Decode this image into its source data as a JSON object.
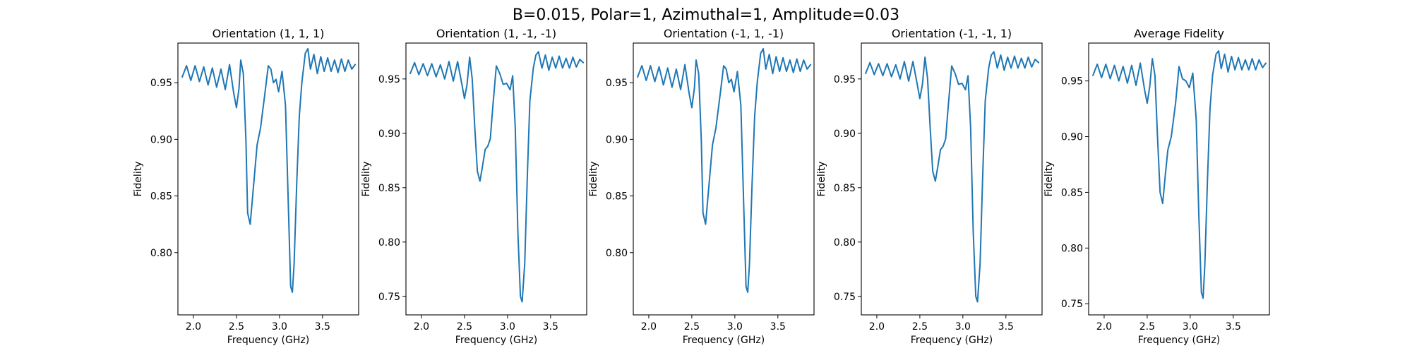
{
  "figure": {
    "suptitle": "B=0.015, Polar=1, Azimuthal=1, Amplitude=0.03"
  },
  "chart_data": [
    {
      "type": "line",
      "title": "Orientation (1, 1, 1)",
      "xlabel": "Frequency (GHz)",
      "ylabel": "Fidelity",
      "xlim": [
        1.82,
        3.92
      ],
      "ylim": [
        0.745,
        0.985
      ],
      "xticks": [
        2.0,
        2.5,
        3.0,
        3.5
      ],
      "yticks": [
        0.8,
        0.85,
        0.9,
        0.95
      ],
      "color": "#1f77b4",
      "grid": false,
      "series": [
        {
          "x": [
            1.87,
            1.92,
            1.97,
            2.02,
            2.07,
            2.12,
            2.17,
            2.22,
            2.27,
            2.32,
            2.37,
            2.42,
            2.47,
            2.5,
            2.53,
            2.55,
            2.58,
            2.61,
            2.63,
            2.66,
            2.7,
            2.74,
            2.78,
            2.83,
            2.87,
            2.9,
            2.93,
            2.96,
            2.99,
            3.03,
            3.07,
            3.1,
            3.13,
            3.15,
            3.17,
            3.2,
            3.23,
            3.26,
            3.3,
            3.33,
            3.36,
            3.4,
            3.44,
            3.48,
            3.52,
            3.56,
            3.6,
            3.64,
            3.68,
            3.72,
            3.76,
            3.8,
            3.84,
            3.88
          ],
          "y": [
            0.955,
            0.965,
            0.952,
            0.965,
            0.951,
            0.964,
            0.948,
            0.963,
            0.946,
            0.962,
            0.944,
            0.966,
            0.94,
            0.928,
            0.945,
            0.97,
            0.958,
            0.9,
            0.835,
            0.825,
            0.86,
            0.895,
            0.91,
            0.94,
            0.965,
            0.962,
            0.95,
            0.953,
            0.942,
            0.96,
            0.93,
            0.85,
            0.77,
            0.765,
            0.79,
            0.86,
            0.92,
            0.95,
            0.976,
            0.98,
            0.962,
            0.975,
            0.958,
            0.973,
            0.96,
            0.972,
            0.96,
            0.97,
            0.959,
            0.971,
            0.96,
            0.97,
            0.962,
            0.966
          ]
        }
      ]
    },
    {
      "type": "line",
      "title": "Orientation (1, -1, -1)",
      "xlabel": "Frequency (GHz)",
      "ylabel": "Fidelity",
      "xlim": [
        1.82,
        3.92
      ],
      "ylim": [
        0.733,
        0.983
      ],
      "xticks": [
        2.0,
        2.5,
        3.0,
        3.5
      ],
      "yticks": [
        0.75,
        0.8,
        0.85,
        0.9,
        0.95
      ],
      "color": "#1f77b4",
      "grid": false,
      "series": [
        {
          "x": [
            1.87,
            1.92,
            1.97,
            2.02,
            2.07,
            2.12,
            2.17,
            2.22,
            2.27,
            2.32,
            2.37,
            2.42,
            2.47,
            2.5,
            2.53,
            2.56,
            2.59,
            2.62,
            2.65,
            2.68,
            2.71,
            2.74,
            2.77,
            2.8,
            2.83,
            2.87,
            2.91,
            2.95,
            2.99,
            3.03,
            3.06,
            3.09,
            3.12,
            3.15,
            3.17,
            3.2,
            3.23,
            3.26,
            3.3,
            3.33,
            3.36,
            3.4,
            3.44,
            3.48,
            3.52,
            3.56,
            3.6,
            3.64,
            3.68,
            3.72,
            3.76,
            3.8,
            3.84,
            3.88
          ],
          "y": [
            0.955,
            0.965,
            0.954,
            0.964,
            0.953,
            0.964,
            0.952,
            0.963,
            0.95,
            0.966,
            0.948,
            0.966,
            0.945,
            0.932,
            0.945,
            0.97,
            0.95,
            0.905,
            0.865,
            0.856,
            0.87,
            0.885,
            0.888,
            0.895,
            0.925,
            0.962,
            0.955,
            0.945,
            0.946,
            0.94,
            0.953,
            0.905,
            0.81,
            0.75,
            0.745,
            0.78,
            0.86,
            0.93,
            0.96,
            0.972,
            0.975,
            0.96,
            0.972,
            0.958,
            0.97,
            0.96,
            0.971,
            0.96,
            0.969,
            0.96,
            0.97,
            0.961,
            0.968,
            0.965
          ]
        }
      ]
    },
    {
      "type": "line",
      "title": "Orientation (-1, 1, -1)",
      "xlabel": "Frequency (GHz)",
      "ylabel": "Fidelity",
      "xlim": [
        1.82,
        3.92
      ],
      "ylim": [
        0.745,
        0.985
      ],
      "xticks": [
        2.0,
        2.5,
        3.0,
        3.5
      ],
      "yticks": [
        0.8,
        0.85,
        0.9,
        0.95
      ],
      "color": "#1f77b4",
      "grid": false,
      "series": [
        {
          "x": [
            1.87,
            1.92,
            1.97,
            2.02,
            2.07,
            2.12,
            2.17,
            2.22,
            2.27,
            2.32,
            2.37,
            2.42,
            2.47,
            2.5,
            2.53,
            2.55,
            2.58,
            2.61,
            2.63,
            2.66,
            2.7,
            2.74,
            2.78,
            2.83,
            2.87,
            2.9,
            2.93,
            2.96,
            2.99,
            3.03,
            3.07,
            3.1,
            3.13,
            3.15,
            3.17,
            3.2,
            3.23,
            3.26,
            3.3,
            3.33,
            3.36,
            3.4,
            3.44,
            3.48,
            3.52,
            3.56,
            3.6,
            3.64,
            3.68,
            3.72,
            3.76,
            3.8,
            3.84,
            3.88
          ],
          "y": [
            0.955,
            0.965,
            0.952,
            0.965,
            0.951,
            0.964,
            0.948,
            0.963,
            0.946,
            0.962,
            0.944,
            0.966,
            0.94,
            0.928,
            0.945,
            0.97,
            0.958,
            0.9,
            0.835,
            0.825,
            0.86,
            0.895,
            0.91,
            0.94,
            0.965,
            0.962,
            0.95,
            0.953,
            0.942,
            0.96,
            0.93,
            0.85,
            0.77,
            0.765,
            0.79,
            0.86,
            0.92,
            0.95,
            0.976,
            0.98,
            0.962,
            0.975,
            0.958,
            0.973,
            0.96,
            0.972,
            0.96,
            0.97,
            0.959,
            0.971,
            0.96,
            0.97,
            0.962,
            0.966
          ]
        }
      ]
    },
    {
      "type": "line",
      "title": "Orientation (-1, -1, 1)",
      "xlabel": "Frequency (GHz)",
      "ylabel": "Fidelity",
      "xlim": [
        1.82,
        3.92
      ],
      "ylim": [
        0.733,
        0.983
      ],
      "xticks": [
        2.0,
        2.5,
        3.0,
        3.5
      ],
      "yticks": [
        0.75,
        0.8,
        0.85,
        0.9,
        0.95
      ],
      "color": "#1f77b4",
      "grid": false,
      "series": [
        {
          "x": [
            1.87,
            1.92,
            1.97,
            2.02,
            2.07,
            2.12,
            2.17,
            2.22,
            2.27,
            2.32,
            2.37,
            2.42,
            2.47,
            2.5,
            2.53,
            2.56,
            2.59,
            2.62,
            2.65,
            2.68,
            2.71,
            2.74,
            2.77,
            2.8,
            2.83,
            2.87,
            2.91,
            2.95,
            2.99,
            3.03,
            3.06,
            3.09,
            3.12,
            3.15,
            3.17,
            3.2,
            3.23,
            3.26,
            3.3,
            3.33,
            3.36,
            3.4,
            3.44,
            3.48,
            3.52,
            3.56,
            3.6,
            3.64,
            3.68,
            3.72,
            3.76,
            3.8,
            3.84,
            3.88
          ],
          "y": [
            0.955,
            0.965,
            0.954,
            0.964,
            0.953,
            0.964,
            0.952,
            0.963,
            0.95,
            0.966,
            0.948,
            0.966,
            0.945,
            0.932,
            0.945,
            0.97,
            0.95,
            0.905,
            0.865,
            0.856,
            0.87,
            0.885,
            0.888,
            0.895,
            0.925,
            0.962,
            0.955,
            0.945,
            0.946,
            0.94,
            0.953,
            0.905,
            0.81,
            0.75,
            0.745,
            0.78,
            0.86,
            0.93,
            0.96,
            0.972,
            0.975,
            0.96,
            0.972,
            0.958,
            0.97,
            0.96,
            0.971,
            0.96,
            0.969,
            0.96,
            0.97,
            0.961,
            0.968,
            0.965
          ]
        }
      ]
    },
    {
      "type": "line",
      "title": "Average Fidelity",
      "xlabel": "Frequency (GHz)",
      "ylabel": "Fidelity",
      "xlim": [
        1.82,
        3.92
      ],
      "ylim": [
        0.74,
        0.984
      ],
      "xticks": [
        2.0,
        2.5,
        3.0,
        3.5
      ],
      "yticks": [
        0.75,
        0.8,
        0.85,
        0.9,
        0.95
      ],
      "color": "#1f77b4",
      "grid": false,
      "series": [
        {
          "x": [
            1.87,
            1.92,
            1.97,
            2.02,
            2.07,
            2.12,
            2.17,
            2.22,
            2.27,
            2.32,
            2.37,
            2.42,
            2.47,
            2.5,
            2.53,
            2.56,
            2.59,
            2.62,
            2.65,
            2.68,
            2.71,
            2.74,
            2.78,
            2.83,
            2.87,
            2.91,
            2.95,
            2.99,
            3.03,
            3.07,
            3.1,
            3.13,
            3.15,
            3.17,
            3.2,
            3.23,
            3.26,
            3.3,
            3.33,
            3.36,
            3.4,
            3.44,
            3.48,
            3.52,
            3.56,
            3.6,
            3.64,
            3.68,
            3.72,
            3.76,
            3.8,
            3.84,
            3.88
          ],
          "y": [
            0.955,
            0.965,
            0.953,
            0.965,
            0.952,
            0.964,
            0.95,
            0.963,
            0.948,
            0.964,
            0.946,
            0.966,
            0.942,
            0.93,
            0.945,
            0.97,
            0.955,
            0.9,
            0.85,
            0.84,
            0.865,
            0.888,
            0.9,
            0.93,
            0.963,
            0.952,
            0.95,
            0.944,
            0.957,
            0.915,
            0.83,
            0.76,
            0.755,
            0.785,
            0.86,
            0.925,
            0.955,
            0.974,
            0.977,
            0.961,
            0.974,
            0.958,
            0.972,
            0.96,
            0.971,
            0.96,
            0.969,
            0.96,
            0.97,
            0.96,
            0.969,
            0.962,
            0.966
          ]
        }
      ]
    }
  ]
}
